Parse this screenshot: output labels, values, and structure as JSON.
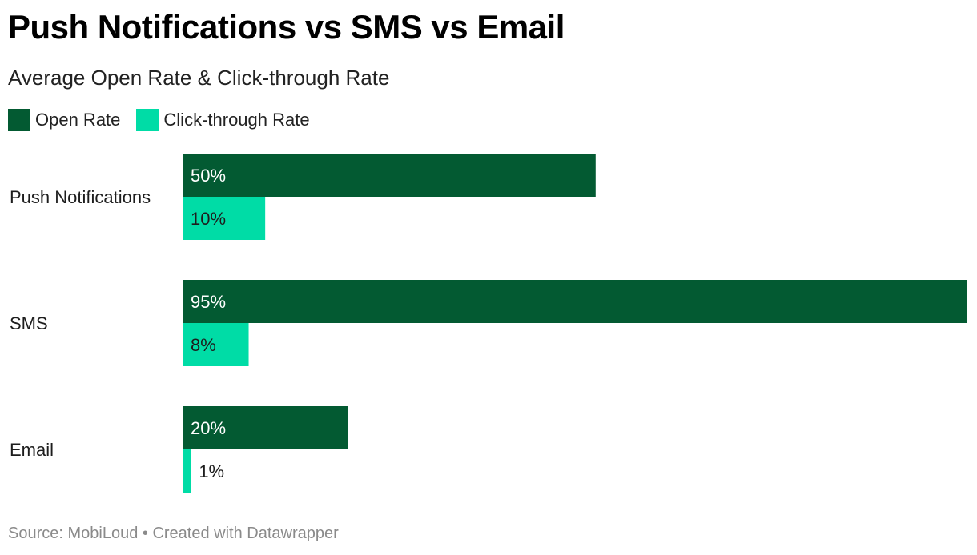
{
  "header": {
    "title": "Push Notifications vs SMS vs Email",
    "subtitle": "Average Open Rate & Click-through Rate"
  },
  "footer": {
    "source": "Source: MobiLoud • Created with Datawrapper"
  },
  "chart_data": {
    "type": "bar",
    "orientation": "horizontal",
    "title": "Push Notifications vs SMS vs Email",
    "subtitle": "Average Open Rate & Click-through Rate",
    "categories": [
      "Push Notifications",
      "SMS",
      "Email"
    ],
    "series": [
      {
        "name": "Open Rate",
        "values": [
          50,
          95,
          20
        ],
        "labels": [
          "50%",
          "95%",
          "20%"
        ],
        "color": "#035a32"
      },
      {
        "name": "Click-through Rate",
        "values": [
          10,
          8,
          1
        ],
        "labels": [
          "10%",
          "8%",
          "1%"
        ],
        "color": "#00dca6"
      }
    ],
    "xlim": [
      0,
      95
    ],
    "unit": "%",
    "grid": false,
    "legend": "top-left"
  }
}
